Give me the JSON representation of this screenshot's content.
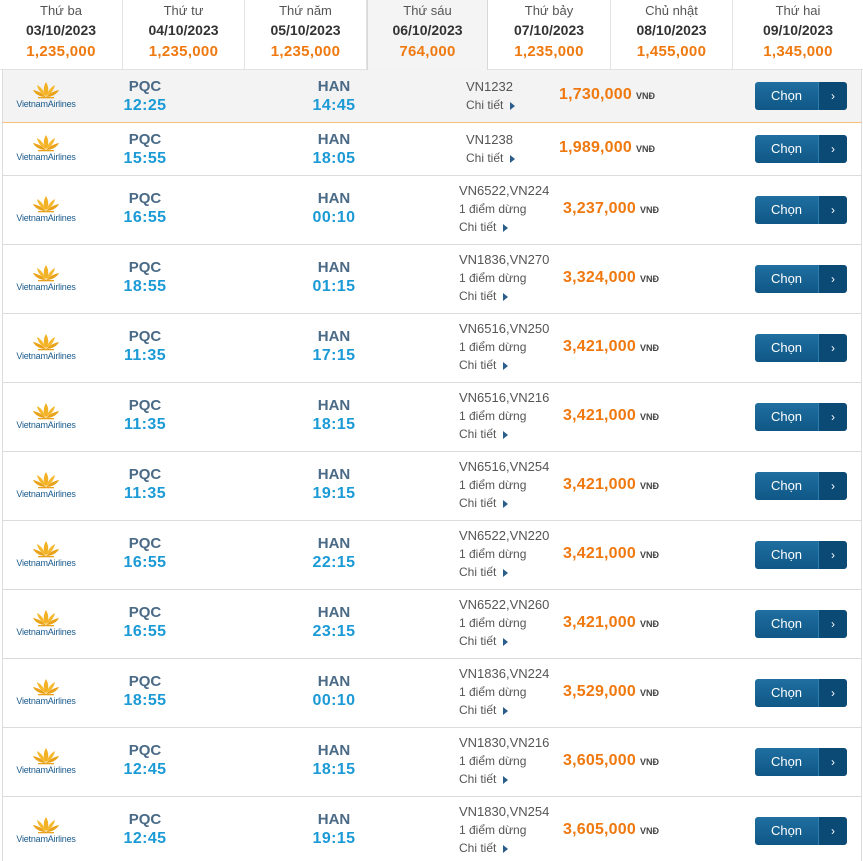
{
  "currency": "VNĐ",
  "detail_label": "Chi tiết",
  "choose_label": "Chọn",
  "airline_name": "VietnamAirlines",
  "colors": {
    "accent_orange": "#f0790f",
    "time_blue": "#1b9ad6",
    "button_blue": "#0f5786"
  },
  "dates": [
    {
      "dow": "Thứ ba",
      "date": "03/10/2023",
      "price": "1,235,000"
    },
    {
      "dow": "Thứ tư",
      "date": "04/10/2023",
      "price": "1,235,000"
    },
    {
      "dow": "Thứ năm",
      "date": "05/10/2023",
      "price": "1,235,000"
    },
    {
      "dow": "Thứ sáu",
      "date": "06/10/2023",
      "price": "764,000",
      "active": true
    },
    {
      "dow": "Thứ bảy",
      "date": "07/10/2023",
      "price": "1,235,000"
    },
    {
      "dow": "Chủ nhật",
      "date": "08/10/2023",
      "price": "1,455,000"
    },
    {
      "dow": "Thứ hai",
      "date": "09/10/2023",
      "price": "1,345,000"
    }
  ],
  "flights": [
    {
      "from": "PQC",
      "dep": "12:25",
      "to": "HAN",
      "arr": "14:45",
      "flight": "VN1232",
      "stops": "",
      "price": "1,730,000",
      "highlight": true
    },
    {
      "from": "PQC",
      "dep": "15:55",
      "to": "HAN",
      "arr": "18:05",
      "flight": "VN1238",
      "stops": "",
      "price": "1,989,000"
    },
    {
      "from": "PQC",
      "dep": "16:55",
      "to": "HAN",
      "arr": "00:10",
      "flight": "VN6522,VN224",
      "stops": "1 điểm dừng",
      "price": "3,237,000"
    },
    {
      "from": "PQC",
      "dep": "18:55",
      "to": "HAN",
      "arr": "01:15",
      "flight": "VN1836,VN270",
      "stops": "1 điểm dừng",
      "price": "3,324,000"
    },
    {
      "from": "PQC",
      "dep": "11:35",
      "to": "HAN",
      "arr": "17:15",
      "flight": "VN6516,VN250",
      "stops": "1 điểm dừng",
      "price": "3,421,000"
    },
    {
      "from": "PQC",
      "dep": "11:35",
      "to": "HAN",
      "arr": "18:15",
      "flight": "VN6516,VN216",
      "stops": "1 điểm dừng",
      "price": "3,421,000"
    },
    {
      "from": "PQC",
      "dep": "11:35",
      "to": "HAN",
      "arr": "19:15",
      "flight": "VN6516,VN254",
      "stops": "1 điểm dừng",
      "price": "3,421,000"
    },
    {
      "from": "PQC",
      "dep": "16:55",
      "to": "HAN",
      "arr": "22:15",
      "flight": "VN6522,VN220",
      "stops": "1 điểm dừng",
      "price": "3,421,000"
    },
    {
      "from": "PQC",
      "dep": "16:55",
      "to": "HAN",
      "arr": "23:15",
      "flight": "VN6522,VN260",
      "stops": "1 điểm dừng",
      "price": "3,421,000"
    },
    {
      "from": "PQC",
      "dep": "18:55",
      "to": "HAN",
      "arr": "00:10",
      "flight": "VN1836,VN224",
      "stops": "1 điểm dừng",
      "price": "3,529,000"
    },
    {
      "from": "PQC",
      "dep": "12:45",
      "to": "HAN",
      "arr": "18:15",
      "flight": "VN1830,VN216",
      "stops": "1 điểm dừng",
      "price": "3,605,000"
    },
    {
      "from": "PQC",
      "dep": "12:45",
      "to": "HAN",
      "arr": "19:15",
      "flight": "VN1830,VN254",
      "stops": "1 điểm dừng",
      "price": "3,605,000"
    }
  ]
}
